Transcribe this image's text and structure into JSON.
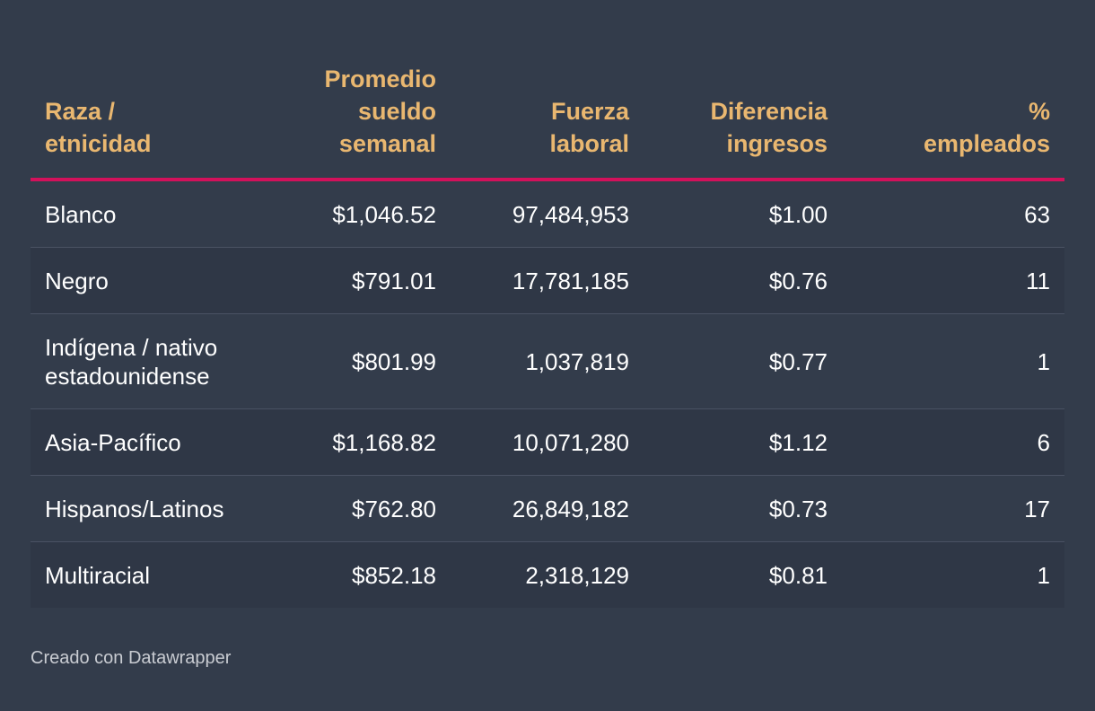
{
  "chart_data": {
    "type": "table",
    "columns": [
      "Raza / etnicidad",
      "Promedio sueldo semanal",
      "Fuerza laboral",
      "Diferencia ingresos",
      "% empleados"
    ],
    "header": {
      "col1": [
        "Raza /",
        "etnicidad"
      ],
      "col2": [
        "Promedio",
        "sueldo",
        "semanal"
      ],
      "col3": [
        "Fuerza",
        "laboral"
      ],
      "col4": [
        "Diferencia",
        "ingresos"
      ],
      "col5": [
        "%",
        "empleados"
      ]
    },
    "rows": [
      {
        "raza": "Blanco",
        "sueldo": "$1,046.52",
        "fuerza": "97,484,953",
        "diferencia": "$1.00",
        "pct": "63"
      },
      {
        "raza": "Negro",
        "sueldo": "$791.01",
        "fuerza": "17,781,185",
        "diferencia": "$0.76",
        "pct": "11"
      },
      {
        "raza": "Indígena / nativo estadounidense",
        "raza_lines": [
          "Indígena / nativo",
          "estadounidense"
        ],
        "sueldo": "$801.99",
        "fuerza": "1,037,819",
        "diferencia": "$0.77",
        "pct": "1"
      },
      {
        "raza": "Asia-Pacífico",
        "sueldo": "$1,168.82",
        "fuerza": "10,071,280",
        "diferencia": "$1.12",
        "pct": "6"
      },
      {
        "raza": "Hispanos/Latinos",
        "sueldo": "$762.80",
        "fuerza": "26,849,182",
        "diferencia": "$0.73",
        "pct": "17"
      },
      {
        "raza": "Multiracial",
        "sueldo": "$852.18",
        "fuerza": "2,318,129",
        "diferencia": "$0.81",
        "pct": "1"
      }
    ]
  },
  "footer": {
    "credit": "Creado con Datawrapper"
  },
  "colors": {
    "background": "#333c4b",
    "header_text": "#e9b770",
    "header_rule": "#d3115b",
    "row_shade": "#2f3746"
  }
}
